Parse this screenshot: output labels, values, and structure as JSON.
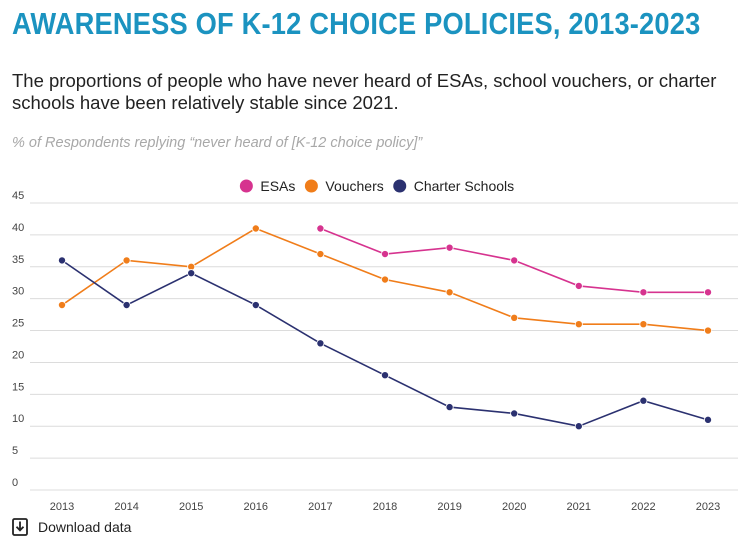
{
  "header": {
    "title": "AWARENESS OF K-12 CHOICE POLICIES, 2013-2023",
    "subtitle": "The proportions of people who have never heard of ESAs, school vouchers, or charter schools have been relatively stable since 2021.",
    "note": "% of Respondents replying “never heard of [K-12 choice policy]”"
  },
  "footer": {
    "download_label": "Download data",
    "download_icon": "download-icon"
  },
  "chart_data": {
    "type": "line",
    "x": [
      2013,
      2014,
      2015,
      2016,
      2017,
      2018,
      2019,
      2020,
      2021,
      2022,
      2023
    ],
    "ylim": [
      0,
      45
    ],
    "yticks": [
      0,
      5,
      10,
      15,
      20,
      25,
      30,
      35,
      40,
      45
    ],
    "grid": true,
    "legend_position": "top-center",
    "series": [
      {
        "name": "ESAs",
        "color": "#d6338f",
        "values": [
          null,
          null,
          null,
          null,
          41,
          37,
          38,
          36,
          32,
          31,
          31
        ]
      },
      {
        "name": "Vouchers",
        "color": "#f07d1a",
        "values": [
          29,
          36,
          35,
          41,
          37,
          33,
          31,
          27,
          26,
          26,
          25
        ]
      },
      {
        "name": "Charter Schools",
        "color": "#2b3170",
        "values": [
          36,
          29,
          34,
          29,
          23,
          18,
          13,
          12,
          10,
          14,
          11
        ]
      }
    ]
  }
}
